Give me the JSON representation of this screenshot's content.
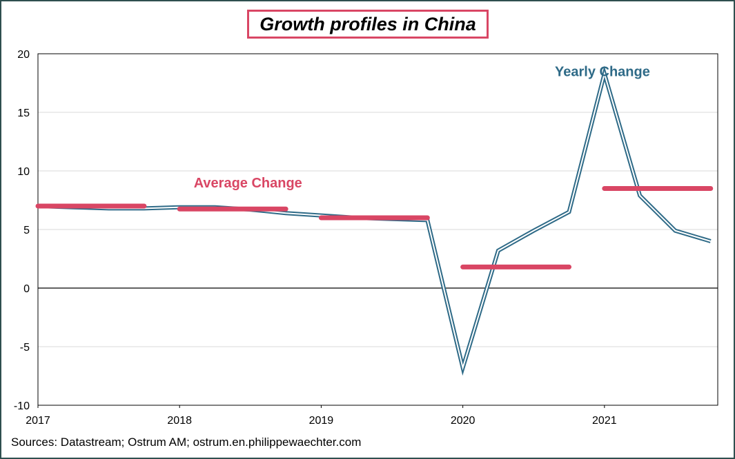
{
  "title": "Growth profiles in China",
  "source": "Sources: Datastream; Ostrum AM; ostrum.en.philippewaechter.com",
  "colors": {
    "yearly": "#2e6a87",
    "average": "#d94664",
    "grid": "#d9d9d9",
    "axis": "#000000"
  },
  "chart_data": {
    "type": "line",
    "title": "Growth profiles in China",
    "xlabel": "",
    "ylabel": "",
    "ylim": [
      -10,
      20
    ],
    "yticks": [
      -10,
      -5,
      0,
      5,
      10,
      15,
      20
    ],
    "xlim": [
      2017,
      2021.8
    ],
    "xticks": [
      "2017",
      "2018",
      "2019",
      "2020",
      "2021"
    ],
    "grid": true,
    "series": [
      {
        "name": "Yearly Change",
        "style": "double-line",
        "x": [
          2017.0,
          2017.25,
          2017.5,
          2017.75,
          2018.0,
          2018.25,
          2018.5,
          2018.75,
          2019.0,
          2019.25,
          2019.5,
          2019.75,
          2020.0,
          2020.25,
          2020.5,
          2020.75,
          2021.0,
          2021.25,
          2021.5,
          2021.75
        ],
        "values": [
          7.0,
          6.9,
          6.8,
          6.8,
          6.9,
          6.9,
          6.7,
          6.4,
          6.2,
          6.0,
          5.9,
          5.8,
          -6.8,
          3.2,
          4.9,
          6.5,
          18.3,
          7.9,
          4.9,
          4.0
        ]
      },
      {
        "name": "Average Change",
        "style": "segments",
        "segments": [
          {
            "x": [
              2017.0,
              2017.75
            ],
            "value": 7.0
          },
          {
            "x": [
              2018.0,
              2018.75
            ],
            "value": 6.75
          },
          {
            "x": [
              2019.0,
              2019.75
            ],
            "value": 6.0
          },
          {
            "x": [
              2020.0,
              2020.75
            ],
            "value": 1.8
          },
          {
            "x": [
              2021.0,
              2021.75
            ],
            "value": 8.5
          }
        ]
      }
    ],
    "annotations": [
      {
        "text": "Yearly Change",
        "series": "Yearly Change",
        "x": 2020.65,
        "y": 18.1
      },
      {
        "text": "Average Change",
        "series": "Average Change",
        "x": 2018.1,
        "y": 8.6
      }
    ]
  }
}
